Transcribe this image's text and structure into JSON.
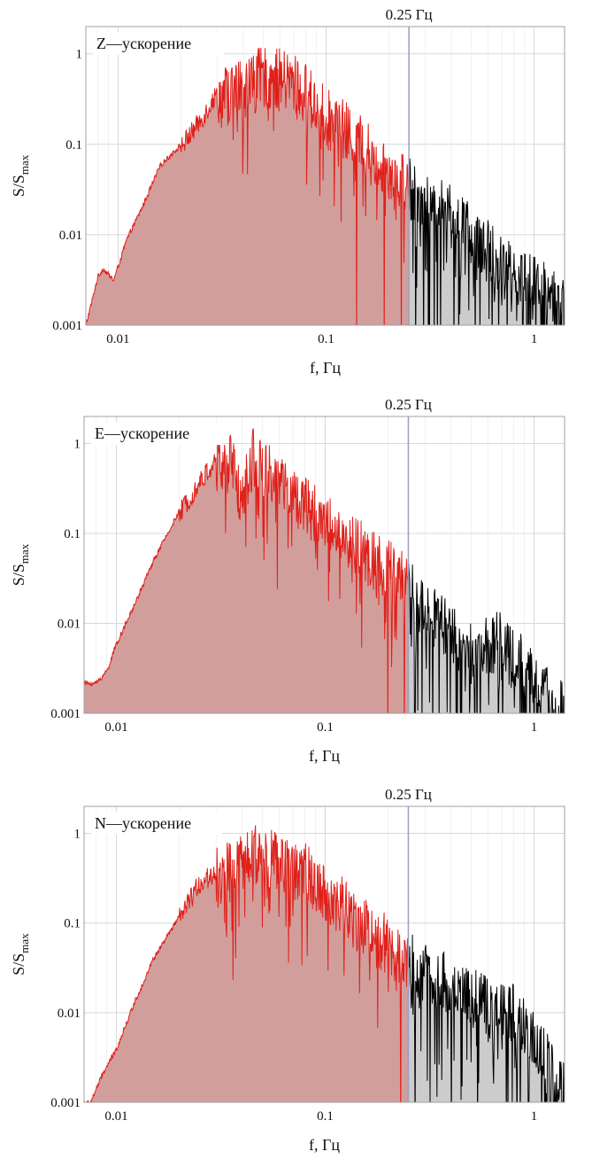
{
  "colors": {
    "low_band_line": "#e0201a",
    "low_band_fill": "#d29e9c",
    "high_band_line": "#000000",
    "high_band_fill": "#cccccc",
    "marker_line": "#9aa0c0",
    "grid": "#d8d8d8",
    "frame": "#a0a0a0"
  },
  "chart_data": [
    {
      "type": "area",
      "title": "Z—ускорение",
      "xlabel": "f,  Гц",
      "ylabel_main": "S/S",
      "ylabel_sub": "max",
      "xscale": "log",
      "yscale": "log",
      "xlim": [
        0.007,
        1.4
      ],
      "ylim": [
        0.001,
        2
      ],
      "grid": true,
      "x_ticks": [
        {
          "value": 0.01,
          "label": "0.01"
        },
        {
          "value": 0.1,
          "label": "0.1"
        },
        {
          "value": 1,
          "label": "1"
        }
      ],
      "y_ticks": [
        {
          "value": 0.001,
          "label": "0.001"
        },
        {
          "value": 0.01,
          "label": "0.01"
        },
        {
          "value": 0.1,
          "label": "0.1"
        },
        {
          "value": 1,
          "label": "1"
        }
      ],
      "marker": {
        "x": 0.25,
        "label": "0.25 Гц"
      },
      "envelope": {
        "x": [
          0.007,
          0.008,
          0.0085,
          0.0095,
          0.01,
          0.011,
          0.013,
          0.016,
          0.02,
          0.025,
          0.03,
          0.04,
          0.05,
          0.06,
          0.07,
          0.08,
          0.1,
          0.12,
          0.15,
          0.2,
          0.25,
          0.3,
          0.4,
          0.5,
          0.7,
          1.0,
          1.4
        ],
        "y": [
          0.001,
          0.0035,
          0.0043,
          0.0032,
          0.0045,
          0.009,
          0.02,
          0.06,
          0.1,
          0.2,
          0.4,
          0.55,
          0.7,
          0.65,
          0.6,
          0.45,
          0.25,
          0.18,
          0.12,
          0.07,
          0.045,
          0.03,
          0.02,
          0.012,
          0.006,
          0.0035,
          0.002
        ]
      },
      "cutoff_x": [
        0.14,
        0.19,
        0.23,
        0.27
      ]
    },
    {
      "type": "area",
      "title": "E—ускорение",
      "xlabel": "f,  Гц",
      "ylabel_main": "S/S",
      "ylabel_sub": "max",
      "xscale": "log",
      "yscale": "log",
      "xlim": [
        0.007,
        1.4
      ],
      "ylim": [
        0.001,
        2
      ],
      "grid": true,
      "x_ticks": [
        {
          "value": 0.01,
          "label": "0.01"
        },
        {
          "value": 0.1,
          "label": "0.1"
        },
        {
          "value": 1,
          "label": "1"
        }
      ],
      "y_ticks": [
        {
          "value": 0.001,
          "label": "0.001"
        },
        {
          "value": 0.01,
          "label": "0.01"
        },
        {
          "value": 0.1,
          "label": "0.1"
        },
        {
          "value": 1,
          "label": "1"
        }
      ],
      "marker": {
        "x": 0.25,
        "label": "0.25 Гц"
      },
      "envelope": {
        "x": [
          0.007,
          0.008,
          0.009,
          0.01,
          0.012,
          0.015,
          0.02,
          0.025,
          0.03,
          0.035,
          0.04,
          0.045,
          0.05,
          0.06,
          0.08,
          0.1,
          0.12,
          0.15,
          0.2,
          0.25,
          0.3,
          0.4,
          0.5,
          0.6,
          0.7,
          0.8,
          1.0,
          1.2,
          1.4
        ],
        "y": [
          0.0022,
          0.0022,
          0.003,
          0.006,
          0.015,
          0.05,
          0.18,
          0.4,
          0.7,
          0.8,
          0.3,
          0.9,
          0.7,
          0.45,
          0.25,
          0.18,
          0.12,
          0.08,
          0.05,
          0.035,
          0.018,
          0.01,
          0.006,
          0.007,
          0.008,
          0.006,
          0.003,
          0.0018,
          0.0012
        ]
      },
      "cutoff_x": [
        0.2,
        0.24,
        0.27
      ]
    },
    {
      "type": "area",
      "title": "N—ускорение",
      "xlabel": "f,  Гц",
      "ylabel_main": "S/S",
      "ylabel_sub": "max",
      "xscale": "log",
      "yscale": "log",
      "xlim": [
        0.007,
        1.4
      ],
      "ylim": [
        0.001,
        2
      ],
      "grid": true,
      "x_ticks": [
        {
          "value": 0.01,
          "label": "0.01"
        },
        {
          "value": 0.1,
          "label": "0.1"
        },
        {
          "value": 1,
          "label": "1"
        }
      ],
      "y_ticks": [
        {
          "value": 0.001,
          "label": "0.001"
        },
        {
          "value": 0.01,
          "label": "0.01"
        },
        {
          "value": 0.1,
          "label": "0.1"
        },
        {
          "value": 1,
          "label": "1"
        }
      ],
      "marker": {
        "x": 0.25,
        "label": "0.25 Гц"
      },
      "envelope": {
        "x": [
          0.0075,
          0.0085,
          0.01,
          0.012,
          0.015,
          0.02,
          0.025,
          0.03,
          0.04,
          0.05,
          0.06,
          0.08,
          0.1,
          0.12,
          0.15,
          0.2,
          0.25,
          0.3,
          0.4,
          0.5,
          0.6,
          0.8,
          1.0,
          1.2,
          1.4
        ],
        "y": [
          0.001,
          0.002,
          0.004,
          0.012,
          0.04,
          0.12,
          0.3,
          0.4,
          0.55,
          0.8,
          0.6,
          0.45,
          0.3,
          0.2,
          0.12,
          0.07,
          0.05,
          0.035,
          0.025,
          0.02,
          0.015,
          0.012,
          0.006,
          0.003,
          0.0015
        ]
      },
      "cutoff_x": [
        0.23,
        0.27
      ]
    }
  ]
}
